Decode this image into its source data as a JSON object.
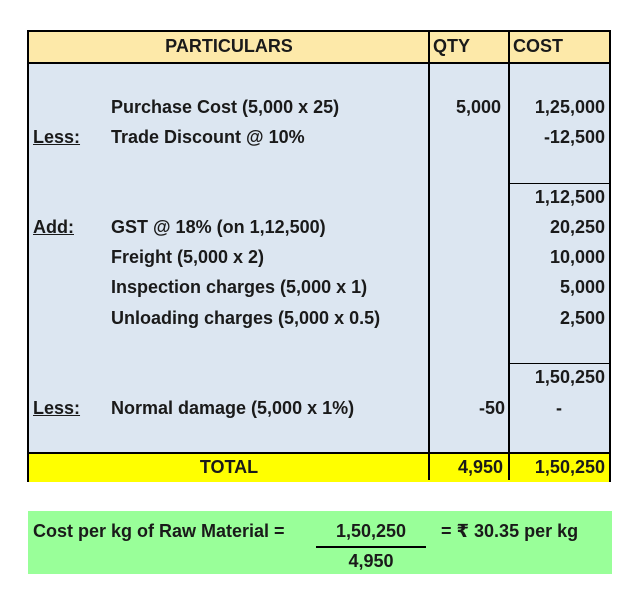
{
  "table": {
    "headers": {
      "particulars": "PARTICULARS",
      "qty": "QTY",
      "cost": "COST"
    },
    "rows": {
      "purchase": {
        "label": "Purchase Cost (5,000 x 25)",
        "qty": "5,000",
        "cost": "1,25,000"
      },
      "discount": {
        "prefix": "Less:",
        "label": "Trade Discount @ 10%",
        "cost": "-12,500"
      },
      "subtotal1": {
        "cost": "1,12,500"
      },
      "gst": {
        "prefix": "Add:",
        "label": "GST @ 18% (on 1,12,500)",
        "cost": "20,250"
      },
      "freight": {
        "label": "Freight (5,000 x 2)",
        "cost": "10,000"
      },
      "inspection": {
        "label": "Inspection charges (5,000 x 1)",
        "cost": "5,000"
      },
      "unloading": {
        "label": "Unloading charges (5,000 x 0.5)",
        "cost": "2,500"
      },
      "subtotal2": {
        "cost": "1,50,250"
      },
      "damage": {
        "prefix": "Less:",
        "label": "Normal damage (5,000 x 1%)",
        "qty": "-50",
        "cost": "-"
      }
    },
    "total": {
      "label": "TOTAL",
      "qty": "4,950",
      "cost": "1,50,250"
    }
  },
  "formula": {
    "label": "Cost per kg of Raw Material =",
    "numerator": "1,50,250",
    "denominator": "4,950",
    "result": "= ₹ 30.35 per kg"
  },
  "colors": {
    "header": "#fde9a9",
    "body": "#dce6f1",
    "total": "#ffff00",
    "formula": "#99ff99"
  }
}
